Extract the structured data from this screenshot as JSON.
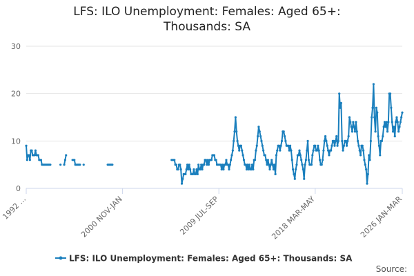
{
  "chart_data": {
    "type": "line",
    "title": "LFS: ILO Unemployment: Females: Aged 65+: Thousands: SA",
    "source": "Source:",
    "categories": [
      "1992 ...",
      null,
      null,
      null,
      null,
      null,
      null,
      null,
      null,
      null,
      null,
      null,
      null,
      null,
      null,
      null,
      null,
      null,
      null,
      null,
      null,
      null,
      null,
      null,
      null,
      null,
      null,
      null,
      null,
      null,
      null,
      null,
      null,
      null,
      null,
      null,
      null,
      null,
      null,
      null,
      null,
      null,
      null,
      null,
      null,
      null,
      null,
      null,
      null,
      null,
      null,
      null,
      null,
      null,
      null,
      null,
      null,
      null,
      null,
      null,
      null,
      null,
      null,
      null,
      null,
      null,
      null,
      null,
      null,
      null,
      null,
      null,
      null,
      null,
      null,
      null,
      null,
      null,
      null,
      null,
      null,
      null,
      null,
      null,
      null,
      null,
      null,
      null,
      null,
      null,
      null,
      null,
      null,
      null,
      null,
      null,
      null,
      null,
      null,
      null,
      null,
      null,
      null,
      null,
      "2000 NOV-JAN",
      null,
      null,
      null,
      null,
      null,
      null,
      null,
      null,
      null,
      null,
      null,
      null,
      null,
      null,
      null,
      null,
      null,
      null,
      null,
      null,
      null,
      null,
      null,
      null,
      null,
      null,
      null,
      null,
      null,
      null,
      null,
      null,
      null,
      null,
      null,
      null,
      null,
      null,
      null,
      null,
      null,
      null,
      null,
      null,
      null,
      null,
      null,
      null,
      null,
      null,
      null,
      null,
      null,
      null,
      null,
      null,
      null,
      null,
      null,
      null,
      null,
      null,
      null,
      null,
      null,
      null,
      null,
      null,
      null,
      null,
      null,
      null,
      null,
      null,
      null,
      null,
      null,
      null,
      null,
      null,
      null,
      null,
      null,
      null,
      null,
      null,
      null,
      null,
      null,
      null,
      null,
      null,
      null,
      null,
      null,
      null,
      null,
      null,
      null,
      null,
      null,
      null,
      null,
      "2009 JUL-SEP",
      null,
      null,
      null,
      null,
      null,
      null,
      null,
      null,
      null,
      null,
      null,
      null,
      null,
      null,
      null,
      null,
      null,
      null,
      null,
      null,
      null,
      null,
      null,
      null,
      null,
      null,
      null,
      null,
      null,
      null,
      null,
      null,
      null,
      null,
      null,
      null,
      null,
      null,
      null,
      null,
      null,
      null,
      null,
      null,
      null,
      null,
      null,
      null,
      null,
      null,
      null,
      null,
      null,
      null,
      null,
      null,
      null,
      null,
      null,
      null,
      null,
      null,
      null,
      null,
      null,
      null,
      null,
      null,
      null,
      null,
      null,
      null,
      null,
      null,
      null,
      null,
      null,
      null,
      null,
      null,
      null,
      null,
      null,
      null,
      null,
      null,
      null,
      null,
      null,
      null,
      null,
      null,
      null,
      null,
      null,
      null,
      null,
      null,
      null,
      null,
      null,
      null,
      null,
      "2018 MAR-MAY",
      null,
      null,
      null,
      null,
      null,
      null,
      null,
      null,
      null,
      null,
      null,
      null,
      null,
      null,
      null,
      null,
      null,
      null,
      null,
      null,
      null,
      null,
      null,
      null,
      null,
      null,
      null,
      null,
      null,
      null,
      null,
      null,
      null,
      null,
      null,
      null,
      null,
      null,
      null,
      null,
      null,
      null,
      null,
      null,
      null,
      null,
      null,
      null,
      null,
      null,
      null,
      null,
      null,
      null,
      null,
      null,
      null,
      null,
      null,
      null,
      null,
      null,
      null,
      null,
      null,
      null,
      null,
      null,
      null,
      null,
      null,
      null,
      null,
      null,
      null,
      null,
      null,
      null,
      null,
      null,
      null,
      null,
      null,
      null,
      null,
      null,
      null,
      null,
      null,
      null,
      null,
      null,
      null,
      "2026 JAN-MAR"
    ],
    "series": [
      {
        "name": "LFS: ILO Unemployment: Females: Aged 65+: Thousands: SA",
        "color": "#1a7fbd",
        "values": [
          9,
          6,
          7,
          7,
          6,
          8,
          8,
          7,
          7,
          7,
          8,
          7,
          7,
          7,
          6,
          6,
          6,
          5,
          5,
          5,
          5,
          5,
          5,
          5,
          5,
          5,
          5,
          null,
          null,
          null,
          null,
          null,
          null,
          null,
          null,
          null,
          null,
          5,
          null,
          null,
          null,
          5,
          6,
          7,
          null,
          null,
          null,
          null,
          null,
          null,
          6,
          6,
          6,
          5,
          5,
          5,
          5,
          5,
          5,
          null,
          null,
          null,
          5,
          null,
          null,
          null,
          null,
          null,
          null,
          null,
          null,
          null,
          null,
          null,
          null,
          null,
          null,
          null,
          null,
          null,
          null,
          null,
          null,
          null,
          null,
          null,
          null,
          null,
          5,
          5,
          5,
          5,
          5,
          5,
          null,
          null,
          null,
          null,
          null,
          null,
          null,
          null,
          null,
          null,
          null,
          null,
          null,
          null,
          null,
          null,
          null,
          null,
          null,
          null,
          null,
          null,
          null,
          null,
          null,
          null,
          null,
          null,
          null,
          null,
          null,
          null,
          null,
          null,
          null,
          null,
          null,
          null,
          null,
          null,
          null,
          null,
          null,
          null,
          null,
          null,
          null,
          null,
          null,
          null,
          null,
          null,
          null,
          null,
          null,
          null,
          null,
          null,
          null,
          null,
          null,
          null,
          null,
          6,
          6,
          6,
          6,
          5,
          5,
          4,
          4,
          5,
          5,
          4,
          1,
          2,
          3,
          3,
          3,
          4,
          5,
          4,
          5,
          4,
          3,
          3,
          3,
          4,
          3,
          3,
          4,
          3,
          5,
          4,
          4,
          5,
          4,
          5,
          5,
          6,
          6,
          5,
          6,
          5,
          6,
          6,
          6,
          7,
          7,
          7,
          6,
          6,
          5,
          5,
          5,
          5,
          5,
          4,
          5,
          4,
          5,
          5,
          6,
          5,
          5,
          4,
          5,
          6,
          7,
          8,
          10,
          12,
          15,
          12,
          10,
          9,
          8,
          9,
          9,
          8,
          7,
          6,
          5,
          5,
          4,
          5,
          4,
          5,
          4,
          4,
          5,
          4,
          6,
          6,
          8,
          9,
          11,
          13,
          12,
          11,
          10,
          9,
          8,
          7,
          7,
          6,
          5,
          6,
          5,
          4,
          5,
          6,
          5,
          4,
          5,
          3,
          7,
          8,
          9,
          9,
          8,
          9,
          10,
          12,
          12,
          11,
          10,
          9,
          9,
          9,
          8,
          9,
          8,
          6,
          4,
          3,
          2,
          4,
          5,
          7,
          7,
          8,
          7,
          6,
          5,
          4,
          2,
          5,
          6,
          8,
          10,
          6,
          5,
          5,
          5,
          7,
          8,
          9,
          9,
          8,
          8,
          9,
          8,
          6,
          5,
          5,
          6,
          8,
          10,
          11,
          10,
          9,
          8,
          7,
          8,
          8,
          9,
          10,
          10,
          9,
          10,
          11,
          9,
          10,
          20,
          17,
          18,
          10,
          8,
          9,
          10,
          10,
          9,
          10,
          11,
          15,
          14,
          13,
          12,
          14,
          13,
          12,
          14,
          12,
          10,
          9,
          8,
          7,
          9,
          9,
          8,
          6,
          5,
          4,
          1,
          3,
          7,
          6,
          10,
          15,
          17,
          22,
          15,
          12,
          17,
          16,
          11,
          9,
          7,
          10,
          10,
          11,
          13,
          14,
          13,
          14,
          12,
          14,
          20,
          20,
          17,
          14,
          12,
          13,
          11,
          14,
          15,
          14,
          12,
          13,
          14,
          15,
          16
        ]
      }
    ],
    "ylim": [
      0,
      30
    ],
    "yticks": [
      0,
      10,
      20,
      30
    ],
    "grid": true,
    "legend": "bottom"
  }
}
